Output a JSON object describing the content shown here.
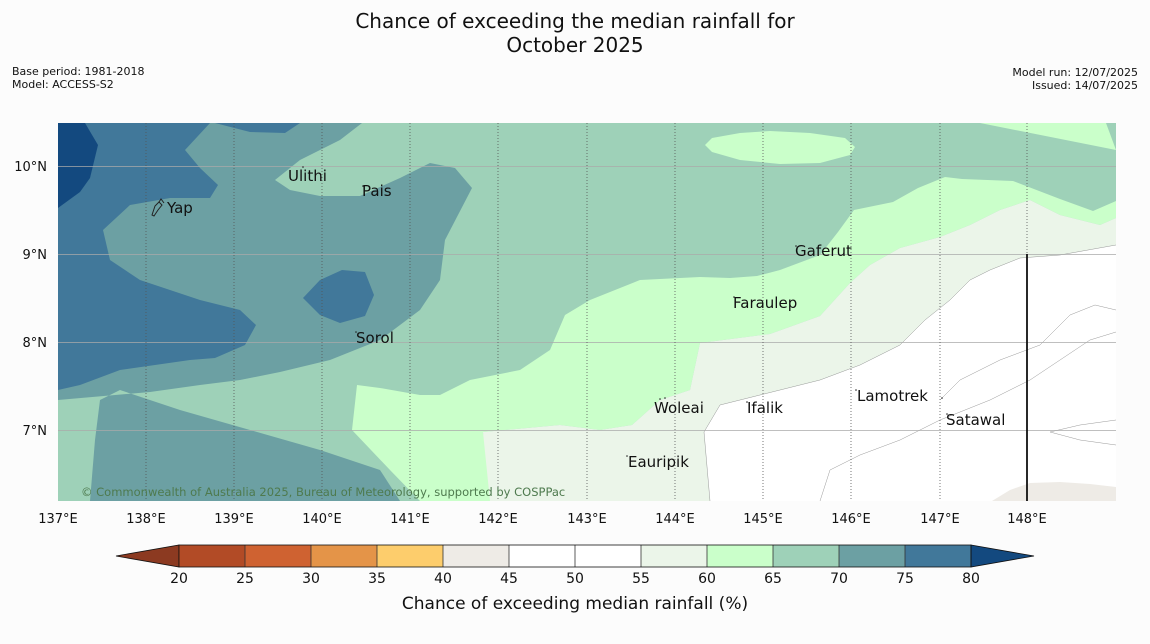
{
  "title_line1": "Chance of exceeding the median rainfall for",
  "title_line2": "October 2025",
  "base_period": "Base period: 1981-2018",
  "model": "Model: ACCESS-S2",
  "model_run": "Model run: 12/07/2025",
  "issued": "Issued: 14/07/2025",
  "copyright": "© Commonwealth of Australia 2025, Bureau of Meteorology, supported by COSPPac",
  "longitude_ticks": [
    "137°E",
    "138°E",
    "139°E",
    "140°E",
    "141°E",
    "142°E",
    "143°E",
    "144°E",
    "145°E",
    "146°E",
    "147°E",
    "148°E"
  ],
  "latitude_ticks": [
    "10°N",
    "9°N",
    "8°N",
    "7°N"
  ],
  "places": [
    "Ulithi",
    "Pais",
    "Yap",
    "Gaferut",
    "Faraulep",
    "Sorol",
    "Lamotrek",
    "Woleai",
    "Ifalik",
    "Satawal",
    "Eauripik"
  ],
  "colorbar": {
    "label": "Chance of exceeding median rainfall (%)",
    "ticks": [
      "20",
      "25",
      "30",
      "35",
      "40",
      "45",
      "50",
      "55",
      "60",
      "65",
      "70",
      "75",
      "80"
    ],
    "colors": {
      "below_20": "#8c3a21",
      "20_25": "#b24b26",
      "25_30": "#cf6231",
      "30_35": "#e49448",
      "35_40": "#fdcd6c",
      "40_45": "#eeebe6",
      "45_50": "#ffffff",
      "50_55": "#ffffff",
      "55_60": "#ebf5e9",
      "60_65": "#caffca",
      "65_70": "#9ed1b8",
      "70_75": "#6ca0a3",
      "75_80": "#41789a",
      "above_80": "#13497f"
    }
  }
}
